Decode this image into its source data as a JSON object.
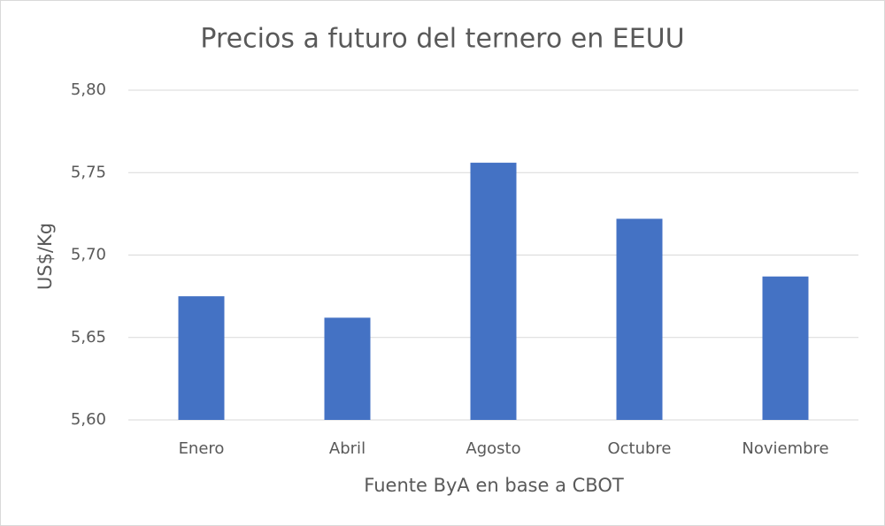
{
  "chart_data": {
    "type": "bar",
    "title": "Precios a futuro del ternero en EEUU",
    "x_label": "Fuente ByA en base a CBOT",
    "y_label": "US$/Kg",
    "categories": [
      "Enero",
      "Abril",
      "Agosto",
      "Octubre",
      "Noviembre"
    ],
    "values": [
      5.675,
      5.662,
      5.756,
      5.722,
      5.687
    ],
    "color": "#4472c4",
    "ylim": [
      5.6,
      5.8
    ],
    "yticks": [
      {
        "value": 5.6,
        "label": "5,60"
      },
      {
        "value": 5.65,
        "label": "5,65"
      },
      {
        "value": 5.7,
        "label": "5,70"
      },
      {
        "value": 5.75,
        "label": "5,75"
      },
      {
        "value": 5.8,
        "label": "5,80"
      }
    ],
    "grid": true
  }
}
